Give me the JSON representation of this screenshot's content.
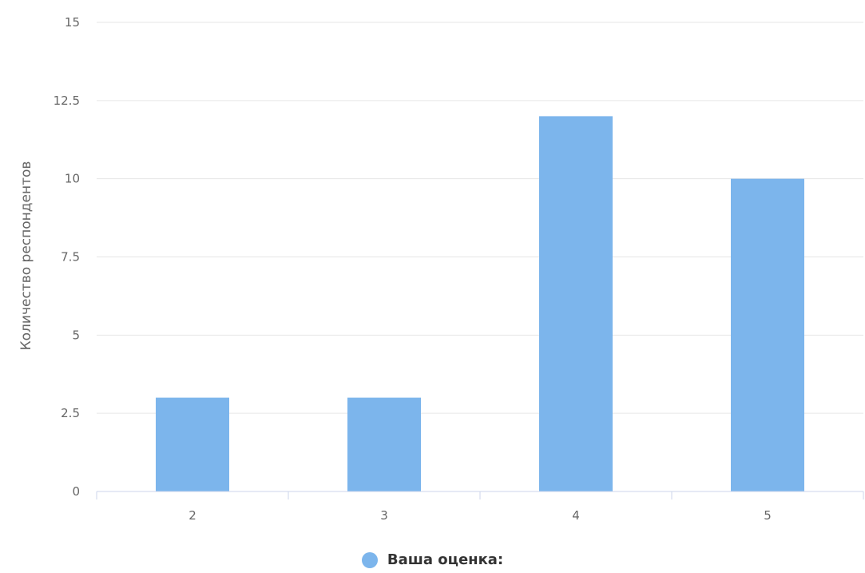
{
  "chart_data": {
    "type": "bar",
    "categories": [
      "2",
      "3",
      "4",
      "5"
    ],
    "series": [
      {
        "name": "Ваша оценка:",
        "values": [
          3,
          3,
          12,
          10
        ]
      }
    ],
    "ylabel": "Количество респондентов",
    "ylim": [
      0,
      15
    ],
    "yticks": [
      "0",
      "2.5",
      "5",
      "7.5",
      "10",
      "12.5",
      "15"
    ],
    "grid": true,
    "legend_placement": "bottom-center"
  },
  "colors": {
    "bar": "#7cb5ec",
    "grid": "#e6e6e6",
    "axis": "#ccd6eb"
  }
}
